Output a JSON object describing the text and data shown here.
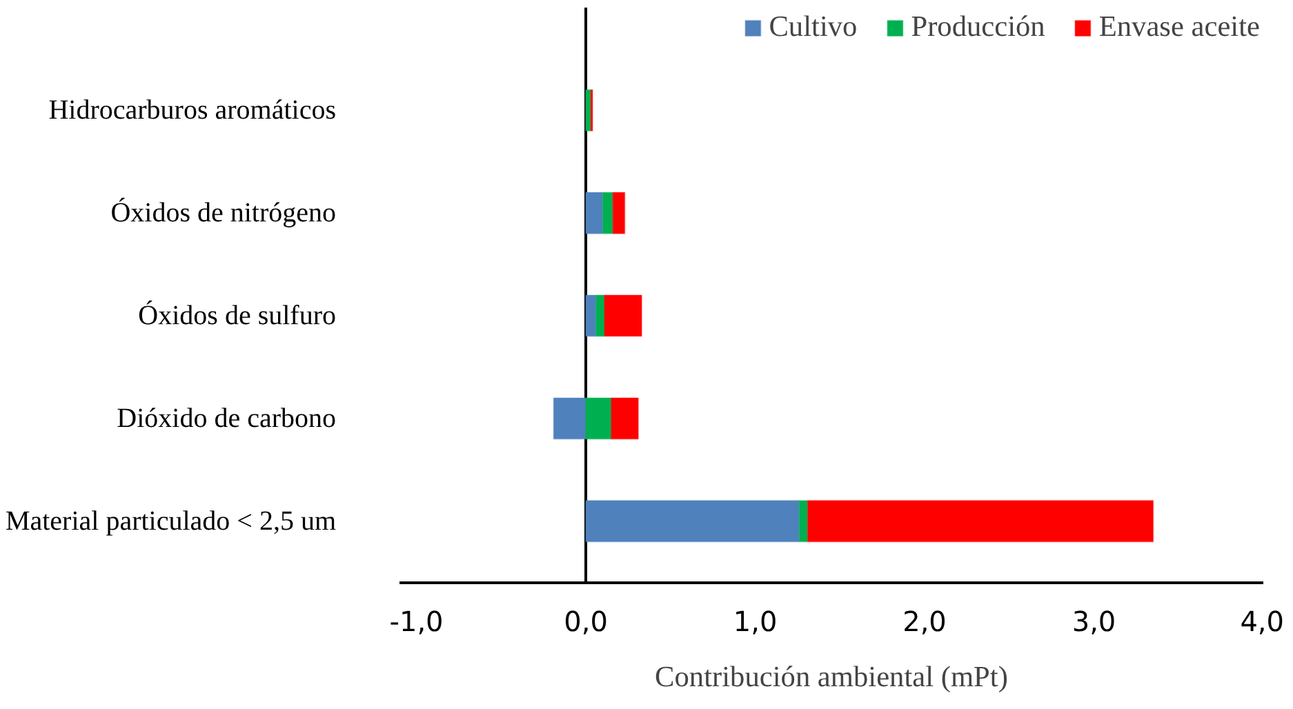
{
  "chart_data": {
    "type": "bar",
    "orientation": "horizontal",
    "stacked": true,
    "xlabel": "Contribución ambiental (mPt)",
    "categories": [
      "Hidrocarburos aromáticos",
      "Óxidos de nitrógeno",
      "Óxidos de sulfuro",
      "Dióxido de carbono",
      "Material particulado < 2,5 um"
    ],
    "series": [
      {
        "name": "Cultivo",
        "color": "#4f81bd",
        "values": [
          0,
          0.1,
          0.06,
          -0.19,
          1.26
        ]
      },
      {
        "name": "Producción",
        "color": "#00b050",
        "values": [
          0.03,
          0.06,
          0.05,
          0.15,
          0.05
        ]
      },
      {
        "name": "Envase aceite",
        "color": "#ff0000",
        "values": [
          0.01,
          0.07,
          0.22,
          0.16,
          2.04
        ]
      }
    ],
    "xlim": [
      -1.1,
      4.0
    ],
    "xticks": [
      {
        "value": -1,
        "label": "-1,0"
      },
      {
        "value": 0,
        "label": "0,0"
      },
      {
        "value": 1,
        "label": "1,0"
      },
      {
        "value": 2,
        "label": "2,0"
      },
      {
        "value": 3,
        "label": "3,0"
      },
      {
        "value": 4,
        "label": "4,0"
      }
    ],
    "legend": "top"
  }
}
